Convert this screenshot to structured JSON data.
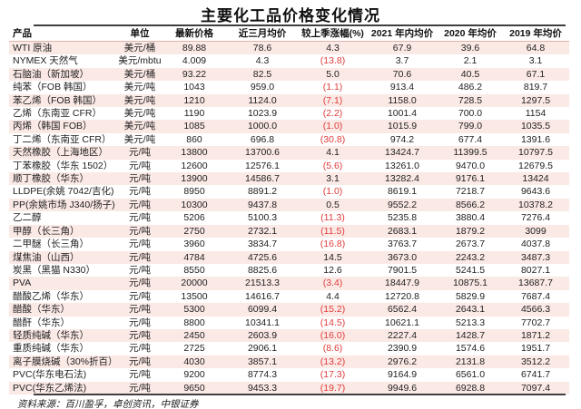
{
  "title": "主要化工品价格变化情况",
  "table": {
    "columns": [
      "产品",
      "单位",
      "最新价格",
      "近三月均价",
      "较上季涨幅(%)",
      "2021 年内均价",
      "2020 年均价",
      "2019 年均价"
    ],
    "rows": [
      {
        "product": "WTI 原油",
        "unit": "美元/桶",
        "latest": "89.88",
        "avg3m": "78.6",
        "qoq": "4.3",
        "y2021": "67.9",
        "y2020": "39.6",
        "y2019": "64.8"
      },
      {
        "product": "NYMEX 天然气",
        "unit": "美元/mbtu",
        "latest": "4.009",
        "avg3m": "4.3",
        "qoq": "(13.8)",
        "y2021": "3.7",
        "y2020": "2.1",
        "y2019": "3.1"
      },
      {
        "product": "石脑油（新加坡）",
        "unit": "美元/桶",
        "latest": "93.22",
        "avg3m": "82.5",
        "qoq": "5.0",
        "y2021": "70.6",
        "y2020": "40.5",
        "y2019": "67.1"
      },
      {
        "product": "纯苯（FOB 韩国）",
        "unit": "美元/吨",
        "latest": "1043",
        "avg3m": "959.0",
        "qoq": "(1.1)",
        "y2021": "913.4",
        "y2020": "486.2",
        "y2019": "819.7"
      },
      {
        "product": "苯乙烯（FOB 韩国）",
        "unit": "美元/吨",
        "latest": "1210",
        "avg3m": "1124.0",
        "qoq": "(7.1)",
        "y2021": "1158.0",
        "y2020": "728.5",
        "y2019": "1297.5"
      },
      {
        "product": "乙烯（东南亚 CFR）",
        "unit": "美元/吨",
        "latest": "1190",
        "avg3m": "1023.9",
        "qoq": "(2.2)",
        "y2021": "1001.4",
        "y2020": "700.0",
        "y2019": "1154"
      },
      {
        "product": "丙烯（韩国 FOB）",
        "unit": "美元/吨",
        "latest": "1085",
        "avg3m": "1000.0",
        "qoq": "(1.0)",
        "y2021": "1015.9",
        "y2020": "799.0",
        "y2019": "1035.5"
      },
      {
        "product": "丁二烯（东南亚 CFR）",
        "unit": "美元/吨",
        "latest": "860",
        "avg3m": "696.8",
        "qoq": "(30.8)",
        "y2021": "974.2",
        "y2020": "677.4",
        "y2019": "1391.6"
      },
      {
        "product": "天然橡胶（上海地区）",
        "unit": "元/吨",
        "latest": "13800",
        "avg3m": "13700.6",
        "qoq": "4.1",
        "y2021": "13424.7",
        "y2020": "11399.5",
        "y2019": "10797.5"
      },
      {
        "product": "丁苯橡胶（华东 1502）",
        "unit": "元/吨",
        "latest": "12600",
        "avg3m": "12576.1",
        "qoq": "(5.6)",
        "y2021": "13261.0",
        "y2020": "9470.0",
        "y2019": "12679.5"
      },
      {
        "product": "顺丁橡胶（华东）",
        "unit": "元/吨",
        "latest": "13900",
        "avg3m": "14586.7",
        "qoq": "3.1",
        "y2021": "13282.4",
        "y2020": "9176.1",
        "y2019": "13424"
      },
      {
        "product": "LLDPE(余姚 7042/吉化)",
        "unit": "元/吨",
        "latest": "8950",
        "avg3m": "8891.2",
        "qoq": "(1.0)",
        "y2021": "8619.1",
        "y2020": "7218.7",
        "y2019": "9643.6"
      },
      {
        "product": "PP(余姚市场 J340/扬子)",
        "unit": "元/吨",
        "latest": "10300",
        "avg3m": "9437.8",
        "qoq": "0.5",
        "y2021": "9552.2",
        "y2020": "8566.2",
        "y2019": "10378.2"
      },
      {
        "product": "乙二醇",
        "unit": "元/吨",
        "latest": "5206",
        "avg3m": "5100.3",
        "qoq": "(11.3)",
        "y2021": "5235.8",
        "y2020": "3880.4",
        "y2019": "7276.4"
      },
      {
        "product": "甲醇（长三角）",
        "unit": "元/吨",
        "latest": "2750",
        "avg3m": "2732.1",
        "qoq": "(11.5)",
        "y2021": "2683.1",
        "y2020": "1879.2",
        "y2019": "3099"
      },
      {
        "product": "二甲醚（长三角）",
        "unit": "元/吨",
        "latest": "3960",
        "avg3m": "3834.7",
        "qoq": "(16.8)",
        "y2021": "3763.7",
        "y2020": "2673.7",
        "y2019": "4037.8"
      },
      {
        "product": "煤焦油（山西）",
        "unit": "元/吨",
        "latest": "4784",
        "avg3m": "4725.6",
        "qoq": "14.5",
        "y2021": "3673.0",
        "y2020": "2243.2",
        "y2019": "3487.3"
      },
      {
        "product": "炭黑（黑猫 N330）",
        "unit": "元/吨",
        "latest": "8550",
        "avg3m": "8825.6",
        "qoq": "12.6",
        "y2021": "7901.5",
        "y2020": "5241.5",
        "y2019": "8027.1"
      },
      {
        "product": "PVA",
        "unit": "元/吨",
        "latest": "20000",
        "avg3m": "21513.3",
        "qoq": "(3.4)",
        "y2021": "18447.9",
        "y2020": "10875.1",
        "y2019": "13687.7"
      },
      {
        "product": "醋酸乙烯（华东）",
        "unit": "元/吨",
        "latest": "13500",
        "avg3m": "14616.7",
        "qoq": "4.4",
        "y2021": "12720.8",
        "y2020": "5829.9",
        "y2019": "7687.4"
      },
      {
        "product": "醋酸（华东）",
        "unit": "元/吨",
        "latest": "5300",
        "avg3m": "6099.4",
        "qoq": "(15.2)",
        "y2021": "6562.4",
        "y2020": "2643.1",
        "y2019": "4566.3"
      },
      {
        "product": "醋酐（华东）",
        "unit": "元/吨",
        "latest": "8800",
        "avg3m": "10341.1",
        "qoq": "(14.5)",
        "y2021": "10621.1",
        "y2020": "5213.3",
        "y2019": "7702.7"
      },
      {
        "product": "轻质纯碱（华东）",
        "unit": "元/吨",
        "latest": "2450",
        "avg3m": "2603.9",
        "qoq": "(16.0)",
        "y2021": "2227.4",
        "y2020": "1428.7",
        "y2019": "1871.2"
      },
      {
        "product": "重质纯碱（华东）",
        "unit": "元/吨",
        "latest": "2725",
        "avg3m": "2906.1",
        "qoq": "(8.6)",
        "y2021": "2390.9",
        "y2020": "1574.6",
        "y2019": "1951.7"
      },
      {
        "product": "离子膜烧碱（30%折百）",
        "unit": "元/吨",
        "latest": "4030",
        "avg3m": "3857.1",
        "qoq": "(13.2)",
        "y2021": "2976.2",
        "y2020": "2131.8",
        "y2019": "3512.2"
      },
      {
        "product": "PVC(华东电石法)",
        "unit": "元/吨",
        "latest": "9200",
        "avg3m": "8774.3",
        "qoq": "(17.3)",
        "y2021": "9164.9",
        "y2020": "6561.0",
        "y2019": "6741.7"
      },
      {
        "product": "PVC(华东乙烯法)",
        "unit": "元/吨",
        "latest": "9650",
        "avg3m": "9453.3",
        "qoq": "(19.7)",
        "y2021": "9949.6",
        "y2020": "6928.8",
        "y2019": "7097.4"
      }
    ]
  },
  "footer": {
    "source": "资料来源：百川盈孚，卓创资讯，中银证券"
  },
  "colors": {
    "stripe": "#fbe9e5",
    "negative": "#e13c3c",
    "rule": "#3f3f3f",
    "header_underline": "#dfb3ab"
  }
}
